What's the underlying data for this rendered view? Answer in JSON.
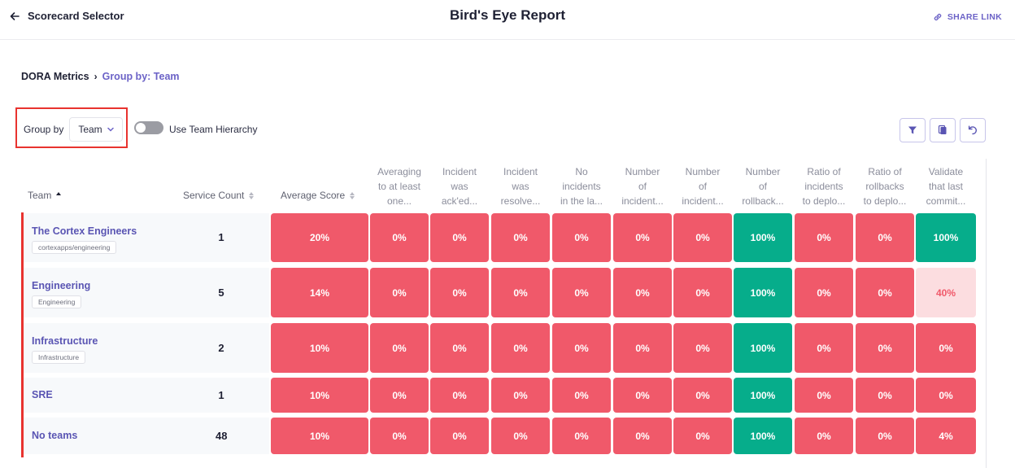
{
  "header": {
    "back_label": "Scorecard Selector",
    "title": "Bird's Eye Report",
    "share_label": "SHARE LINK"
  },
  "breadcrumb": {
    "root": "DORA Metrics",
    "current": "Group by: Team"
  },
  "controls": {
    "group_by_label": "Group by",
    "group_by_value": "Team",
    "hierarchy_label": "Use Team Hierarchy",
    "hierarchy_enabled": false
  },
  "table": {
    "team_header": "Team",
    "count_header": "Service Count",
    "score_header": "Average Score",
    "rule_headers": [
      [
        "Averaging",
        "to at least",
        "one..."
      ],
      [
        "Incident",
        "was",
        "ack'ed..."
      ],
      [
        "Incident",
        "was",
        "resolve..."
      ],
      [
        "No",
        "incidents",
        "in the la..."
      ],
      [
        "Number",
        "of",
        "incident..."
      ],
      [
        "Number",
        "of",
        "incident..."
      ],
      [
        "Number",
        "of",
        "rollback..."
      ],
      [
        "Ratio of",
        "incidents",
        "to deplo..."
      ],
      [
        "Ratio of",
        "rollbacks",
        "to deplo..."
      ],
      [
        "Validate",
        "that last",
        "commit..."
      ]
    ],
    "rows": [
      {
        "team": "The Cortex Engineers",
        "tag": "cortexapps/engineering",
        "count": "1",
        "avg": "20%",
        "cells": [
          "0%",
          "0%",
          "0%",
          "0%",
          "0%",
          "0%",
          "100%",
          "0%",
          "0%",
          "100%"
        ],
        "status": [
          "red",
          "red",
          "red",
          "red",
          "red",
          "red",
          "green",
          "red",
          "red",
          "green"
        ]
      },
      {
        "team": "Engineering",
        "tag": "Engineering",
        "count": "5",
        "avg": "14%",
        "cells": [
          "0%",
          "0%",
          "0%",
          "0%",
          "0%",
          "0%",
          "100%",
          "0%",
          "0%",
          "40%"
        ],
        "status": [
          "red",
          "red",
          "red",
          "red",
          "red",
          "red",
          "green",
          "red",
          "red",
          "light"
        ]
      },
      {
        "team": "Infrastructure",
        "tag": "Infrastructure",
        "count": "2",
        "avg": "10%",
        "cells": [
          "0%",
          "0%",
          "0%",
          "0%",
          "0%",
          "0%",
          "100%",
          "0%",
          "0%",
          "0%"
        ],
        "status": [
          "red",
          "red",
          "red",
          "red",
          "red",
          "red",
          "green",
          "red",
          "red",
          "red"
        ]
      },
      {
        "team": "SRE",
        "tag": "",
        "count": "1",
        "avg": "10%",
        "cells": [
          "0%",
          "0%",
          "0%",
          "0%",
          "0%",
          "0%",
          "100%",
          "0%",
          "0%",
          "0%"
        ],
        "status": [
          "red",
          "red",
          "red",
          "red",
          "red",
          "red",
          "green",
          "red",
          "red",
          "red"
        ]
      },
      {
        "team": "No teams",
        "tag": "",
        "count": "48",
        "avg": "10%",
        "cells": [
          "0%",
          "0%",
          "0%",
          "0%",
          "0%",
          "0%",
          "100%",
          "0%",
          "0%",
          "4%"
        ],
        "status": [
          "red",
          "red",
          "red",
          "red",
          "red",
          "red",
          "green",
          "red",
          "red",
          "red"
        ]
      }
    ]
  },
  "colors": {
    "fail": "#f0596a",
    "pass": "#06ad8b",
    "partial": "#fcdde0",
    "accent": "#6c63c7",
    "highlight": "#e8332f"
  },
  "icons": {
    "filter": "filter-icon",
    "copy": "copy-icon",
    "reset": "reset-icon",
    "share": "link-icon",
    "back": "arrow-left-icon"
  }
}
